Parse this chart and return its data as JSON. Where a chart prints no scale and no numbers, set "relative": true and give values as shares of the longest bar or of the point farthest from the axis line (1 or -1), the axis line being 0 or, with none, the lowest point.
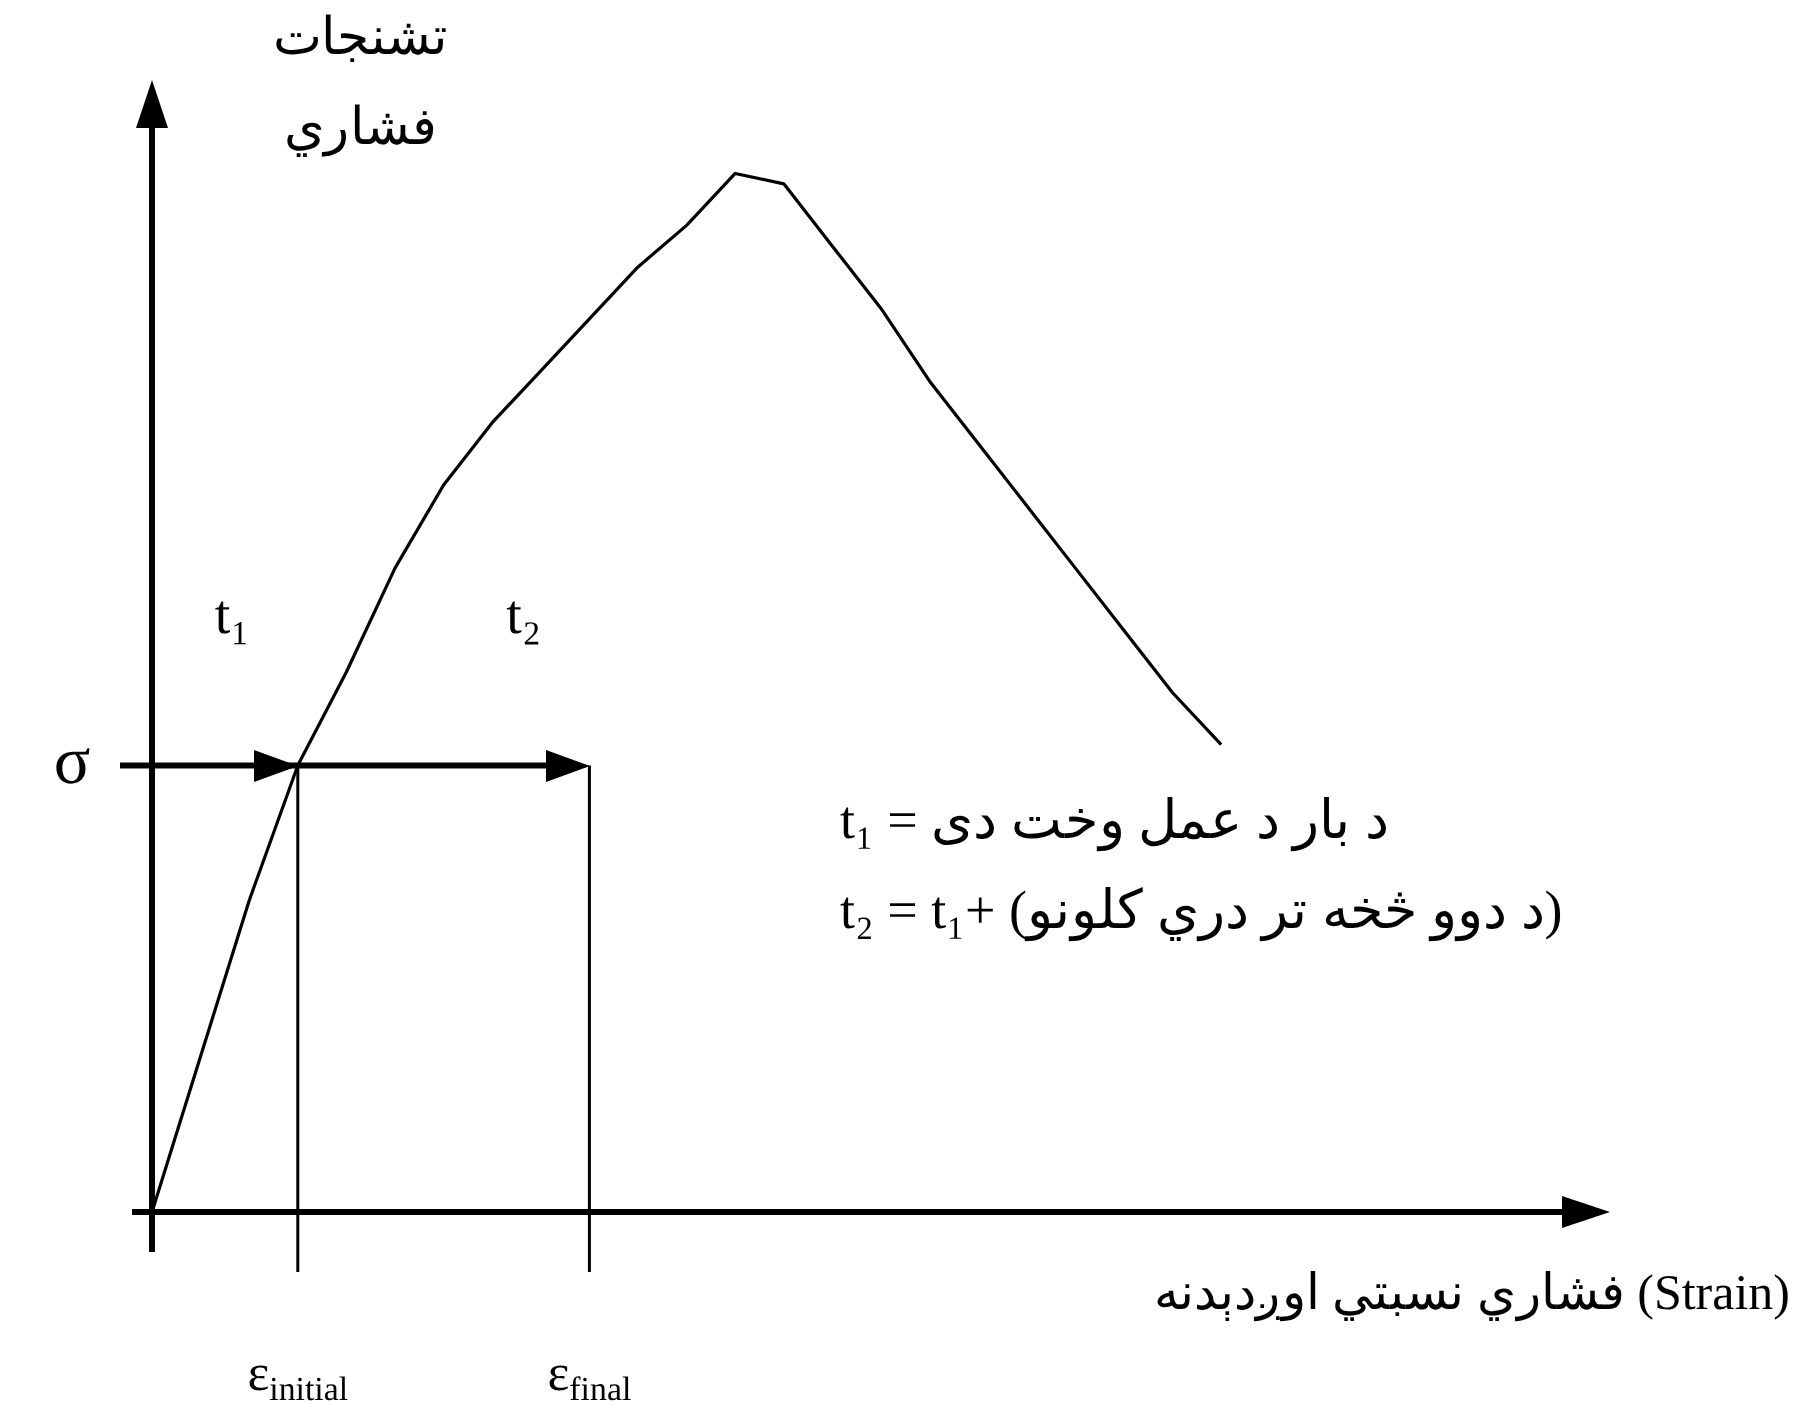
{
  "chart_data": {
    "type": "line",
    "relative": true,
    "xlabel": "فشاري نسبتي اوږدېدنه (Strain)",
    "ylabel": "فشاري تشنجات",
    "categories": [
      null,
      null,
      null,
      "ε$_{initial}$",
      null,
      null,
      null,
      null,
      null,
      "ε$_{final}$",
      null,
      null,
      null,
      null,
      null,
      null,
      null,
      null,
      null,
      null,
      null,
      null,
      null,
      null,
      null,
      null,
      null,
      null,
      null,
      null,
      null
    ],
    "series": [
      {
        "color": "#000000",
        "values": [
          0,
          0.15,
          0.3,
          0.43,
          0.52,
          0.62,
          0.7,
          0.76,
          0.81,
          0.86,
          0.91,
          0.95,
          1.0,
          0.99,
          0.93,
          0.87,
          0.8,
          0.74,
          0.68,
          0.62,
          0.56,
          0.5,
          0.45,
          null,
          null,
          null,
          null,
          null,
          null,
          null,
          null
        ]
      }
    ],
    "ref_lines": [
      {
        "axis": "y",
        "value": 0.43,
        "label": "σ"
      },
      {
        "axis": "x",
        "value": "ε$_{initial}$"
      },
      {
        "axis": "x",
        "value": "ε$_{final}$"
      }
    ],
    "annotations": [
      "t₁",
      "t₂",
      "t₁ = د بار د عمل وخت دی",
      "t₂ = t₁+ (د دوو څخه تر دري کلونو)"
    ]
  }
}
